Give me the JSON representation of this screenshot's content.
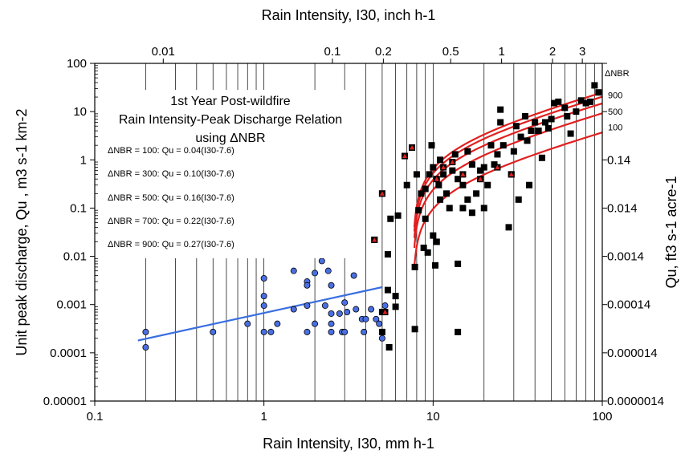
{
  "chart_data": {
    "type": "scatter",
    "xscale": "log",
    "yscale": "log",
    "xlim": [
      0.1,
      100
    ],
    "ylim": [
      1e-05,
      100
    ],
    "xlabel": "Rain Intensity, I30, mm h-1",
    "xlabel_top": "Rain Intensity, I30, inch h-1",
    "ylabel": "Unit peak discharge, Qu , m3 s-1 km-2",
    "ylabel_right": "Qu, ft3 s-1 acre-1",
    "x_ticks": [
      "0.1",
      "1",
      "10",
      "100"
    ],
    "y_ticks": [
      "100",
      "10",
      "1",
      "0.1",
      "0.01",
      "0.001",
      "0.0001",
      "0.00001"
    ],
    "top_ticks": [
      {
        "label": "0.01",
        "in": 0.01
      },
      {
        "label": "0.1",
        "in": 0.1
      },
      {
        "label": "0.2",
        "in": 0.2
      },
      {
        "label": "0.5",
        "in": 0.5
      },
      {
        "label": "1",
        "in": 1
      },
      {
        "label": "2",
        "in": 2
      },
      {
        "label": "3",
        "in": 3
      }
    ],
    "right_ticks": [
      {
        "label": "0.14",
        "y": 1
      },
      {
        "label": "0.014",
        "y": 0.1
      },
      {
        "label": "0.0014",
        "y": 0.01
      },
      {
        "label": "0.00014",
        "y": 0.001
      },
      {
        "label": "0.000014",
        "y": 0.0001
      },
      {
        "label": "0.0000014",
        "y": 1e-05
      }
    ],
    "annotation_lines": [
      "1st Year Post-wildfire",
      "Rain Intensity-Peak Discharge Relation",
      "using ΔNBR"
    ],
    "equations": [
      "ΔNBR = 100: Qu = 0.04(I30-7.6)",
      "ΔNBR = 300: Qu = 0.10(I30-7.6)",
      "ΔNBR = 500: Qu = 0.16(I30-7.6)",
      "ΔNBR = 700: Qu = 0.22(I30-7.6)",
      "ΔNBR = 900: Qu = 0.27(I30-7.6)"
    ],
    "nbr_header": "ΔNBR",
    "nbr_labels": [
      {
        "label": "900",
        "y": 22
      },
      {
        "label": "500",
        "y": 10
      },
      {
        "label": "100",
        "y": 4.8
      }
    ],
    "series": [
      {
        "kind": "circles",
        "color": "#4a6fe3",
        "points": [
          [
            0.2,
            0.00027
          ],
          [
            0.2,
            0.00013
          ],
          [
            0.5,
            0.00027
          ],
          [
            0.8,
            0.0004
          ],
          [
            1.0,
            0.0035
          ],
          [
            1.0,
            0.0015
          ],
          [
            1.0,
            0.00095
          ],
          [
            1.0,
            0.00027
          ],
          [
            1.1,
            0.00027
          ],
          [
            1.2,
            0.0004
          ],
          [
            1.5,
            0.005
          ],
          [
            1.5,
            0.0008
          ],
          [
            1.8,
            0.003
          ],
          [
            1.8,
            0.0025
          ],
          [
            1.8,
            0.00095
          ],
          [
            1.8,
            0.00027
          ],
          [
            2.0,
            0.0045
          ],
          [
            2.0,
            0.0004
          ],
          [
            2.2,
            0.008
          ],
          [
            2.3,
            0.00095
          ],
          [
            2.4,
            0.005
          ],
          [
            2.5,
            0.0025
          ],
          [
            2.5,
            0.00065
          ],
          [
            2.5,
            0.0004
          ],
          [
            2.5,
            0.00027
          ],
          [
            2.8,
            0.00065
          ],
          [
            2.9,
            0.00027
          ],
          [
            3.0,
            0.0011
          ],
          [
            3.0,
            0.00027
          ],
          [
            3.1,
            0.0007
          ],
          [
            3.4,
            0.004
          ],
          [
            3.5,
            0.0008
          ],
          [
            3.8,
            0.0005
          ],
          [
            3.9,
            0.00027
          ],
          [
            4.0,
            0.0005
          ],
          [
            4.3,
            0.0008
          ],
          [
            4.6,
            0.0005
          ],
          [
            4.8,
            0.0004
          ],
          [
            5.0,
            0.0002
          ],
          [
            5.2,
            0.00095
          ]
        ]
      },
      {
        "kind": "squares",
        "color": "#000000",
        "points": [
          [
            4.5,
            0.022
          ],
          [
            5.0,
            0.2
          ],
          [
            5.0,
            0.0007
          ],
          [
            5.0,
            0.00027
          ],
          [
            5.4,
            0.011
          ],
          [
            5.4,
            0.002
          ],
          [
            5.5,
            0.00013
          ],
          [
            5.6,
            0.06
          ],
          [
            6.0,
            0.0009
          ],
          [
            6.0,
            0.0015
          ],
          [
            6.2,
            0.07
          ],
          [
            6.8,
            1.2
          ],
          [
            7.0,
            0.3
          ],
          [
            7.5,
            1.8
          ],
          [
            7.8,
            0.00031
          ],
          [
            7.8,
            0.006
          ],
          [
            8.0,
            0.5
          ],
          [
            8.2,
            0.09
          ],
          [
            8.5,
            0.2
          ],
          [
            8.8,
            0.015
          ],
          [
            9.0,
            0.25
          ],
          [
            9.0,
            0.06
          ],
          [
            9.3,
            0.012
          ],
          [
            9.5,
            0.5
          ],
          [
            9.8,
            2.0
          ],
          [
            10.0,
            0.7
          ],
          [
            10.0,
            0.027
          ],
          [
            10.3,
            0.0065
          ],
          [
            10.5,
            0.02
          ],
          [
            10.8,
            0.3
          ],
          [
            11.0,
            1.0
          ],
          [
            11.0,
            0.15
          ],
          [
            11.5,
            0.5
          ],
          [
            12.0,
            0.2
          ],
          [
            12.5,
            0.1
          ],
          [
            13.0,
            0.6
          ],
          [
            13.5,
            1.3
          ],
          [
            14.0,
            0.4
          ],
          [
            14.0,
            0.007
          ],
          [
            14.0,
            0.00027
          ],
          [
            15.0,
            0.3
          ],
          [
            15.0,
            0.1
          ],
          [
            16.0,
            1.5
          ],
          [
            16.0,
            0.15
          ],
          [
            17.0,
            0.8
          ],
          [
            17.0,
            0.08
          ],
          [
            18.0,
            0.2
          ],
          [
            19.0,
            0.6
          ],
          [
            20.0,
            0.7
          ],
          [
            20.0,
            0.1
          ],
          [
            21.0,
            0.3
          ],
          [
            22.0,
            2.0
          ],
          [
            23.0,
            0.8
          ],
          [
            24.0,
            1.3
          ],
          [
            25.0,
            11.0
          ],
          [
            25.0,
            6.0
          ],
          [
            26.0,
            2.0
          ],
          [
            28.0,
            0.04
          ],
          [
            29.0,
            0.5
          ],
          [
            30.0,
            1.5
          ],
          [
            31.0,
            5.0
          ],
          [
            32.0,
            0.15
          ],
          [
            33.0,
            3.0
          ],
          [
            35.0,
            8.0
          ],
          [
            36.0,
            2.5
          ],
          [
            37.0,
            0.3
          ],
          [
            38.0,
            4.0
          ],
          [
            40.0,
            6.0
          ],
          [
            42.0,
            4.0
          ],
          [
            44.0,
            1.1
          ],
          [
            46.0,
            6.0
          ],
          [
            48.0,
            4.5
          ],
          [
            50.0,
            7.0
          ],
          [
            52.0,
            15.0
          ],
          [
            55.0,
            16.0
          ],
          [
            60.0,
            12.0
          ],
          [
            62.0,
            8.0
          ],
          [
            65.0,
            3.5
          ],
          [
            70.0,
            10.0
          ],
          [
            75.0,
            17.0
          ],
          [
            80.0,
            15.0
          ],
          [
            85.0,
            16.0
          ],
          [
            90.0,
            35.0
          ],
          [
            95.0,
            25.0
          ]
        ]
      },
      {
        "kind": "squares-red-triangle",
        "color": "#000000",
        "marker_color": "#e02020",
        "points": [
          [
            4.5,
            0.022
          ],
          [
            5.0,
            0.2
          ],
          [
            5.2,
            0.0007
          ],
          [
            6.8,
            1.2
          ],
          [
            7.5,
            1.8
          ],
          [
            10.5,
            0.4
          ],
          [
            11.5,
            0.7
          ],
          [
            13.0,
            0.9
          ],
          [
            15.0,
            0.5
          ],
          [
            19.0,
            0.4
          ],
          [
            24.0,
            0.7
          ],
          [
            29.0,
            0.5
          ]
        ]
      }
    ],
    "fit_lines": [
      {
        "name": "regression",
        "color": "#3a6fe0",
        "x": [
          0.18,
          5.0
        ],
        "y": [
          0.00018,
          0.0023
        ]
      },
      {
        "name": "ΔNBR = 100",
        "color": "#e02020",
        "coef": 0.04,
        "offset": 7.6
      },
      {
        "name": "ΔNBR = 300",
        "color": "#e02020",
        "coef": 0.1,
        "offset": 7.6
      },
      {
        "name": "ΔNBR = 500",
        "color": "#e02020",
        "coef": 0.16,
        "offset": 7.6
      },
      {
        "name": "ΔNBR = 700",
        "color": "#e02020",
        "coef": 0.22,
        "offset": 7.6
      },
      {
        "name": "ΔNBR = 900",
        "color": "#e02020",
        "coef": 0.27,
        "offset": 7.6
      }
    ],
    "grid": true
  }
}
